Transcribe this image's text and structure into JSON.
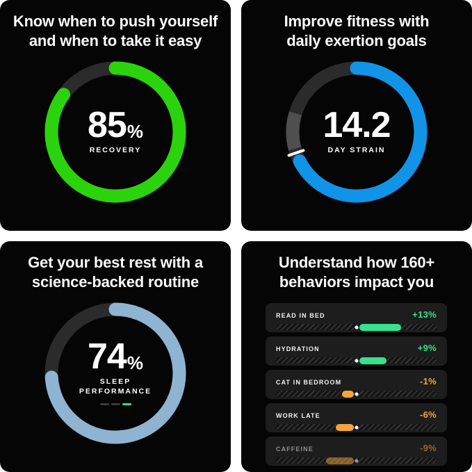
{
  "page": {
    "background": "#FFFFFF",
    "panel_background": "#050505",
    "ring_track_color": "#2B2B2B"
  },
  "recovery": {
    "title_line1": "Know when to push yourself",
    "title_line2": "and when to take it easy",
    "value": "85",
    "unit": "%",
    "label": "RECOVERY",
    "ring": {
      "percent": 85,
      "color": "#2BD30C",
      "track_color": "#2B2B2B",
      "thickness": 19
    }
  },
  "strain": {
    "title_line1": "Improve fitness with",
    "title_line2": "daily exertion goals",
    "value": "14.2",
    "label": "DAY STRAIN",
    "ring": {
      "percent": 67.5,
      "color": "#1193E8",
      "track_color": "#2B2B2B",
      "thickness": 19,
      "tick_deg": 251,
      "tick_color": "#FFFFFF",
      "segment": {
        "from_deg": 255,
        "to_deg": 287,
        "color": "#4F4F4F"
      }
    }
  },
  "sleep": {
    "title_line1": "Get your best rest with a",
    "title_line2": "science-backed routine",
    "value": "74",
    "unit": "%",
    "label_line1": "SLEEP",
    "label_line2": "PERFORMANCE",
    "stage_pills": [
      "#3A3A3A",
      "#3A3A3A",
      "#2EE08C"
    ],
    "ring": {
      "percent": 74,
      "color": "#8FB4D2",
      "track_color": "#2B2B2B",
      "thickness": 19
    }
  },
  "behaviors": {
    "title_line1": "Understand how 160+",
    "title_line2": "behaviors impact you",
    "positive_color": "#35E28F",
    "negative_color": "#F2A63C",
    "rows": [
      {
        "label": "READ IN BED",
        "value": "+13%",
        "direction": "positive",
        "bar_width_pct": 26,
        "faded": false
      },
      {
        "label": "HYDRATION",
        "value": "+9%",
        "direction": "positive",
        "bar_width_pct": 17,
        "faded": false
      },
      {
        "label": "CAT IN BEDROOM",
        "value": "-1%",
        "direction": "negative",
        "bar_width_pct": 7,
        "faded": false
      },
      {
        "label": "WORK LATE",
        "value": "-6%",
        "direction": "negative",
        "bar_width_pct": 11,
        "faded": false
      },
      {
        "label": "CAFFEINE",
        "value": "-9%",
        "direction": "negative",
        "bar_width_pct": 17,
        "faded": true
      }
    ]
  }
}
